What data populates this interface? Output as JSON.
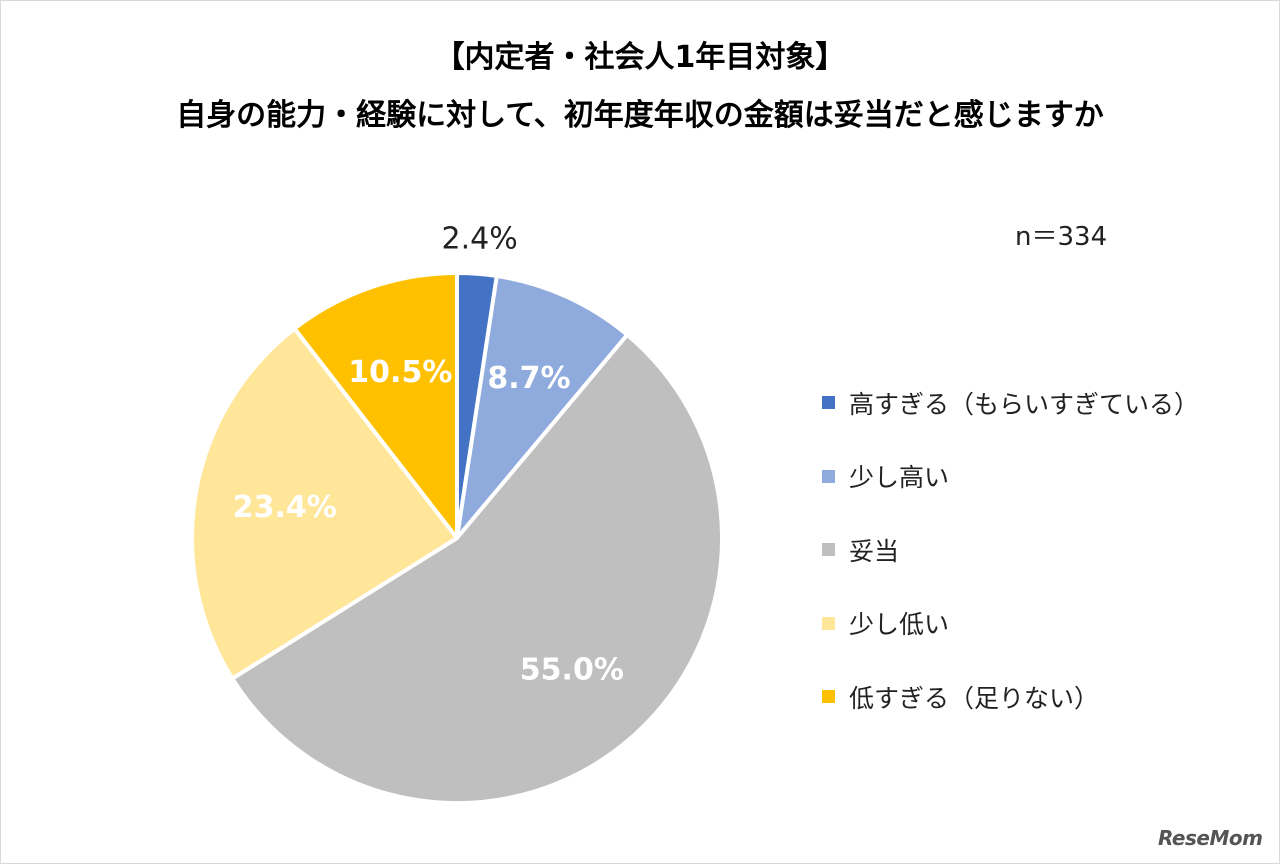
{
  "chart_data": {
    "type": "pie",
    "title": "【内定者・社会人1年目対象】",
    "subtitle": "自身の能力・経験に対して、初年度年収の金額は妥当だと感じますか",
    "note": "n＝334",
    "legend_position": "right",
    "slices": [
      {
        "label": "高すぎる（もらいすぎている）",
        "value": 2.4,
        "value_label": "2.4%",
        "color": "#4472c4"
      },
      {
        "label": "少し高い",
        "value": 8.7,
        "value_label": "8.7%",
        "color": "#8faadc"
      },
      {
        "label": "妥当",
        "value": 55.0,
        "value_label": "55.0%",
        "color": "#bfbfbf"
      },
      {
        "label": "少し低い",
        "value": 23.4,
        "value_label": "23.4%",
        "color": "#ffe699"
      },
      {
        "label": "低すぎる（足りない）",
        "value": 10.5,
        "value_label": "10.5%",
        "color": "#ffc000"
      }
    ]
  },
  "watermark": "ReseMom"
}
